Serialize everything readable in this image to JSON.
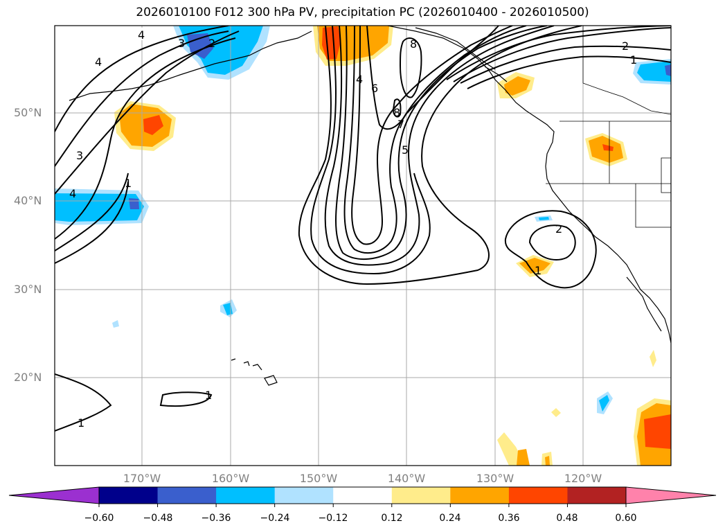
{
  "title": "2026010100 F012 300 hPa PV, precipitation PC (2026010400 - 2026010500)",
  "lat_labels": [
    "50°N",
    "40°N",
    "30°N",
    "20°N"
  ],
  "lon_labels": [
    "170°W",
    "160°W",
    "150°W",
    "140°W",
    "130°W",
    "120°W"
  ],
  "contour_labels": {
    "c4a": "4",
    "c3a": "3",
    "c2a": "2",
    "c4b": "4",
    "c3b": "3",
    "c4c": "4",
    "c1a": "1",
    "c4d": "4",
    "c6": "6",
    "c8a": "8",
    "c8b": "8",
    "c7": "7",
    "c5": "5",
    "c2b": "2",
    "c1b": "1",
    "c2c": "2",
    "c1c": "1",
    "c1d": "1",
    "c1e": "1"
  },
  "colorbar": {
    "ticks": [
      "−0.60",
      "−0.48",
      "−0.36",
      "−0.24",
      "−0.12",
      "0.12",
      "0.24",
      "0.36",
      "0.48",
      "0.60"
    ],
    "colors": [
      "#9b30d0",
      "#00008b",
      "#3a5fcd",
      "#00bfff",
      "#b0e2ff",
      "#ffffff",
      "#ffec8b",
      "#ffa500",
      "#ff4500",
      "#b22222",
      "#ff82ab"
    ]
  }
}
